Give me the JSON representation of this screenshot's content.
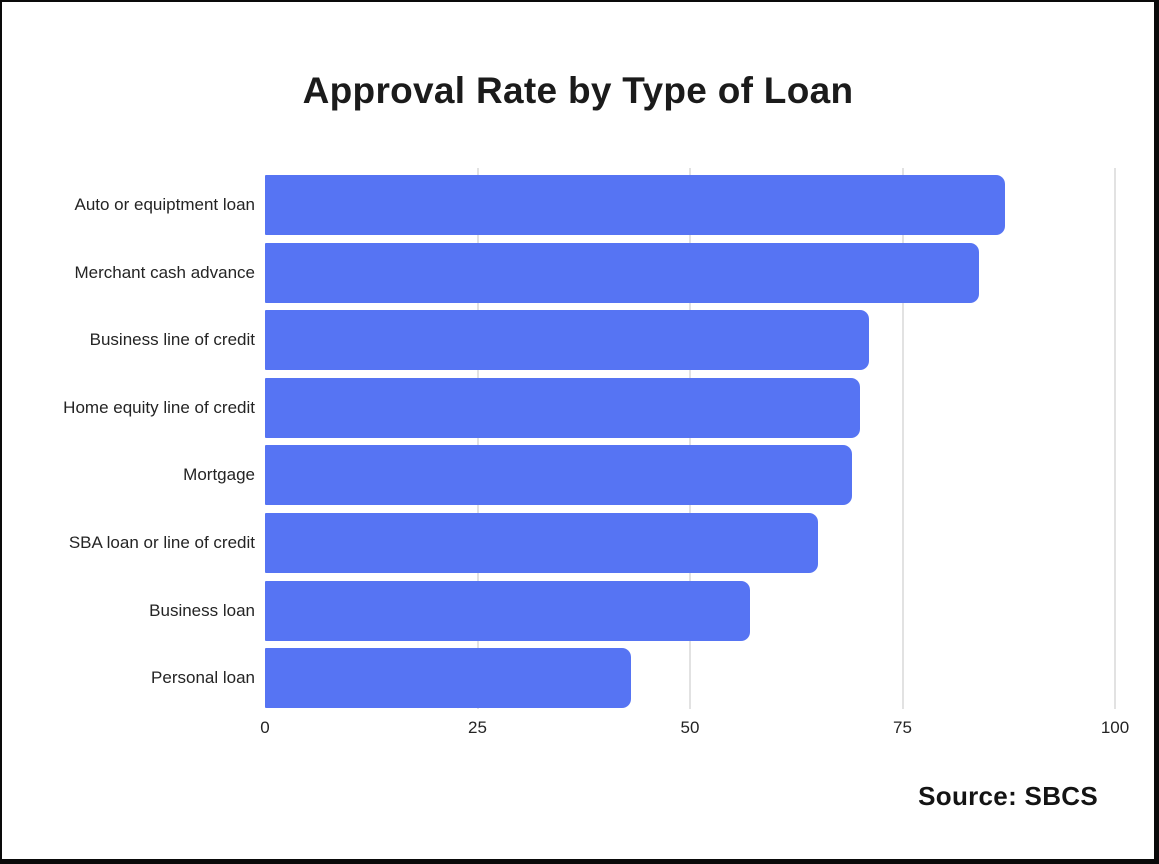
{
  "chart_data": {
    "type": "bar",
    "orientation": "horizontal",
    "title": "Approval Rate by Type of Loan",
    "categories": [
      "Auto or equiptment loan",
      "Merchant cash advance",
      "Business line of credit",
      "Home equity line of credit",
      "Mortgage",
      "SBA loan or line of credit",
      "Business loan",
      "Personal loan"
    ],
    "values": [
      87,
      84,
      71,
      70,
      69,
      65,
      57,
      43
    ],
    "xlabel": "",
    "ylabel": "",
    "xlim": [
      0,
      100
    ],
    "xticks": [
      0,
      25,
      50,
      75,
      100
    ],
    "grid": "vertical",
    "legend": "none",
    "bar_color": "#5674f3",
    "gridline_color": "#e2e2e2",
    "source_label": "Source: SBCS"
  }
}
